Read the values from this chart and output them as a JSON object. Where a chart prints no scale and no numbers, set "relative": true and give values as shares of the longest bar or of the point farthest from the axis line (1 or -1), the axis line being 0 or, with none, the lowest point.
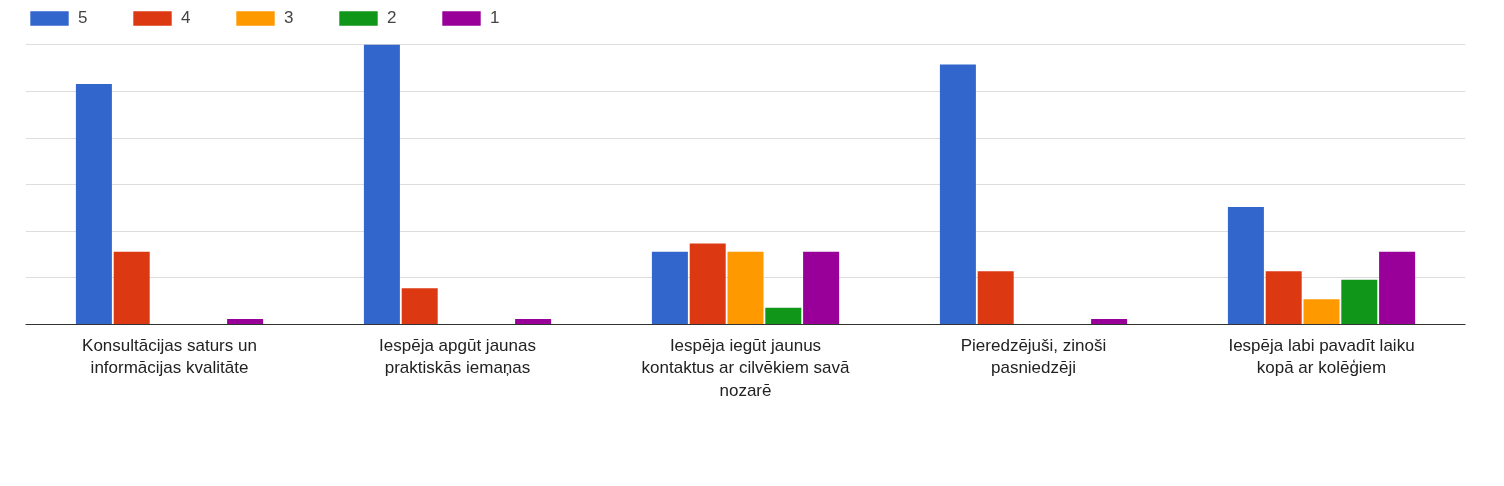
{
  "chart_data": {
    "type": "bar",
    "relative": true,
    "grid": "y",
    "legend": "top left",
    "categories": [
      "Konsultācijas saturs un informācijas kvalitāte",
      "Iespēja apgūt jaunas praktiskās iemaņas",
      "Iespēja iegūt jaunus kontaktus ar cilvēkiem savā nozarē",
      "Pieredzējuši, zinoši pasniedzēji",
      "Iespēja labi pavadīt laiku kopā ar kolēģiem"
    ],
    "series": [
      {
        "name": "5",
        "color": "#3366cc",
        "values": [
          0.86,
          1.0,
          0.26,
          0.93,
          0.42
        ]
      },
      {
        "name": "4",
        "color": "#dc3912",
        "values": [
          0.26,
          0.13,
          0.29,
          0.19,
          0.19
        ]
      },
      {
        "name": "3",
        "color": "#ff9900",
        "values": [
          null,
          null,
          0.26,
          null,
          0.09
        ]
      },
      {
        "name": "2",
        "color": "#109618",
        "values": [
          null,
          null,
          0.06,
          null,
          0.16
        ]
      },
      {
        "name": "1",
        "color": "#990099",
        "values": [
          0.02,
          0.02,
          0.26,
          0.02,
          0.26
        ]
      }
    ]
  }
}
